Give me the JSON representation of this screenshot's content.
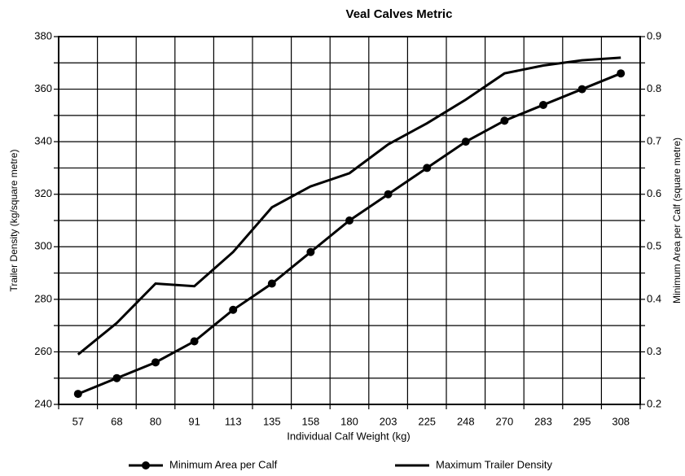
{
  "chart_data": {
    "type": "line",
    "title": "Veal Calves Metric",
    "xlabel": "Individual Calf Weight (kg)",
    "ylabel": "Trailer Density (kg/square metre)",
    "y2label": "Minimum Area per Calf (square metre)",
    "categories": [
      "57",
      "68",
      "80",
      "91",
      "113",
      "135",
      "158",
      "180",
      "203",
      "225",
      "248",
      "270",
      "283",
      "295",
      "308"
    ],
    "series": [
      {
        "name": "Minimum Area per Calf",
        "color": "#000000",
        "axis": "y2",
        "marker": "circle",
        "values": [
          0.22,
          0.25,
          0.28,
          0.32,
          0.38,
          0.43,
          0.49,
          0.55,
          0.6,
          0.65,
          0.7,
          0.74,
          0.77,
          0.8,
          0.83
        ]
      },
      {
        "name": "Maximum Trailer Density",
        "color": "#000000",
        "axis": "y",
        "marker": "none",
        "values": [
          259,
          271,
          286,
          285,
          298,
          315,
          323,
          328,
          339,
          347,
          356,
          366,
          369,
          371,
          372
        ]
      }
    ],
    "ylim": [
      240,
      380
    ],
    "yticks": [
      240,
      260,
      280,
      300,
      320,
      340,
      360,
      380
    ],
    "yminor": [
      250,
      270,
      290,
      310,
      330,
      350,
      370
    ],
    "y2lim": [
      0.2,
      0.9
    ],
    "y2ticks": [
      0.2,
      0.3,
      0.4,
      0.5,
      0.6,
      0.7,
      0.8,
      0.9
    ],
    "grid": true,
    "legend": "bottom"
  }
}
